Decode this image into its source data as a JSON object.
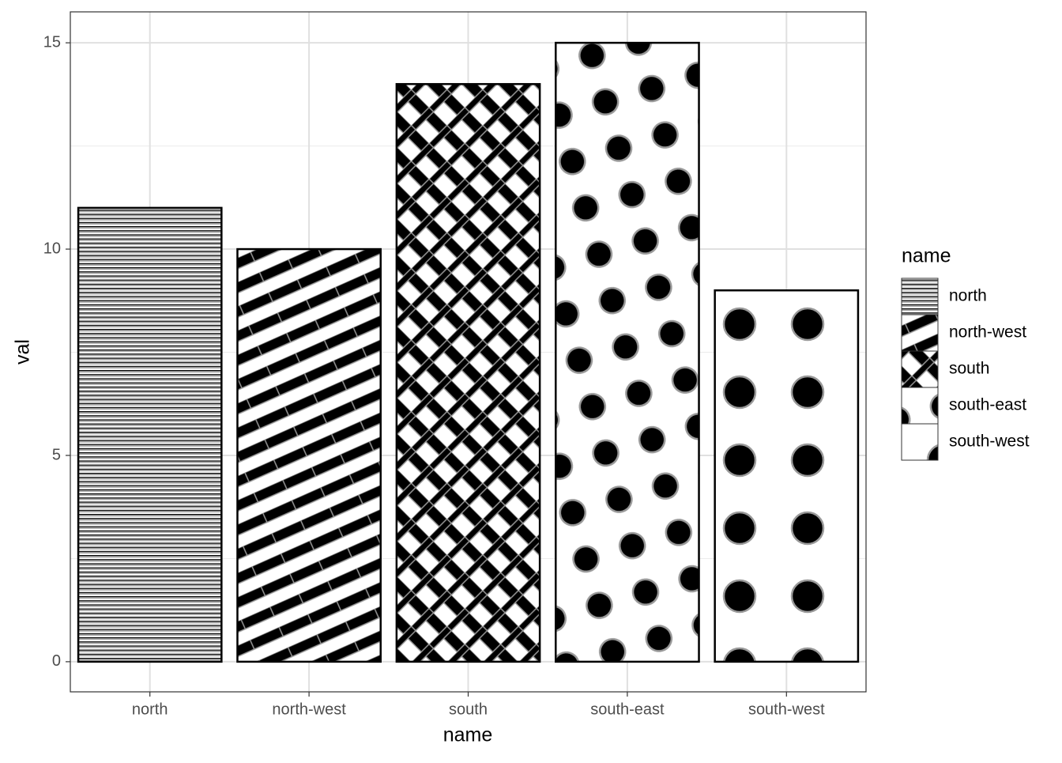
{
  "chart_data": {
    "type": "bar",
    "x_label": "name",
    "y_label": "val",
    "legend_title": "name",
    "categories": [
      "north",
      "north-west",
      "south",
      "south-east",
      "south-west"
    ],
    "values": [
      11,
      10,
      14,
      15,
      9
    ],
    "patterns": [
      "hstripe",
      "diagstripe",
      "crosshatch",
      "dots",
      "bigdots"
    ],
    "color": "#000000",
    "ylim": [
      -0.73,
      15.75
    ],
    "yticks": [
      0,
      5,
      10,
      15
    ],
    "grid": true
  }
}
